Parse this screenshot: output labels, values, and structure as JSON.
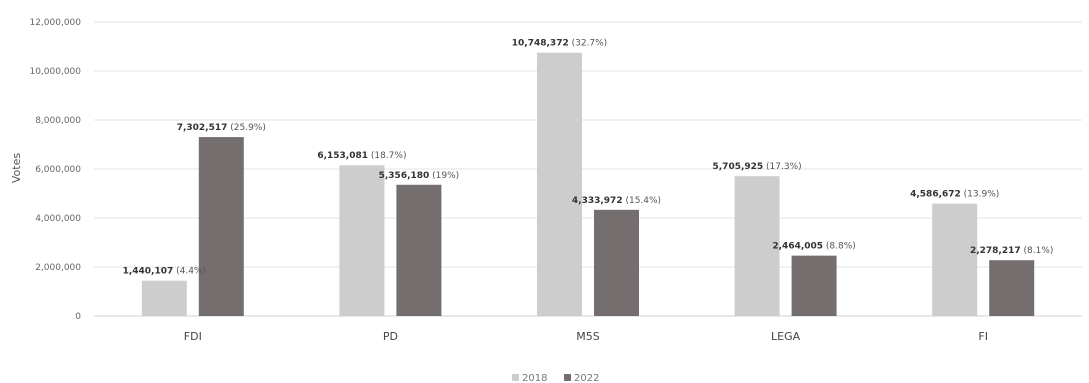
{
  "chart_data": {
    "type": "bar",
    "title": "",
    "xlabel": "",
    "ylabel": "Votes",
    "ylim": [
      0,
      12000000
    ],
    "ytick_values": [
      0,
      2000000,
      4000000,
      6000000,
      8000000,
      10000000,
      12000000
    ],
    "ytick_labels": [
      "0",
      "2,000,000",
      "4,000,000",
      "6,000,000",
      "8,000,000",
      "10,000,000",
      "12,000,000"
    ],
    "grid": true,
    "legend_position": "bottom-center",
    "categories": [
      "FDI",
      "PD",
      "M5S",
      "LEGA",
      "FI"
    ],
    "series": [
      {
        "name": "2018",
        "color": "#cdcdcd",
        "values": [
          1440107,
          6153081,
          10748372,
          5705925,
          4586672
        ],
        "value_labels": [
          "1,440,107",
          "6,153,081",
          "10,748,372",
          "5,705,925",
          "4,586,672"
        ],
        "percent_labels": [
          "(4.4%)",
          "(18.7%)",
          "(32.7%)",
          "(17.3%)",
          "(13.9%)"
        ]
      },
      {
        "name": "2022",
        "color": "#756e6e",
        "values": [
          7302517,
          5356180,
          4333972,
          2464005,
          2278217
        ],
        "value_labels": [
          "7,302,517",
          "5,356,180",
          "4,333,972",
          "2,464,005",
          "2,278,217"
        ],
        "percent_labels": [
          "(25.9%)",
          "(19%)",
          "(15.4%)",
          "(8.8%)",
          "(8.1%)"
        ]
      }
    ]
  }
}
